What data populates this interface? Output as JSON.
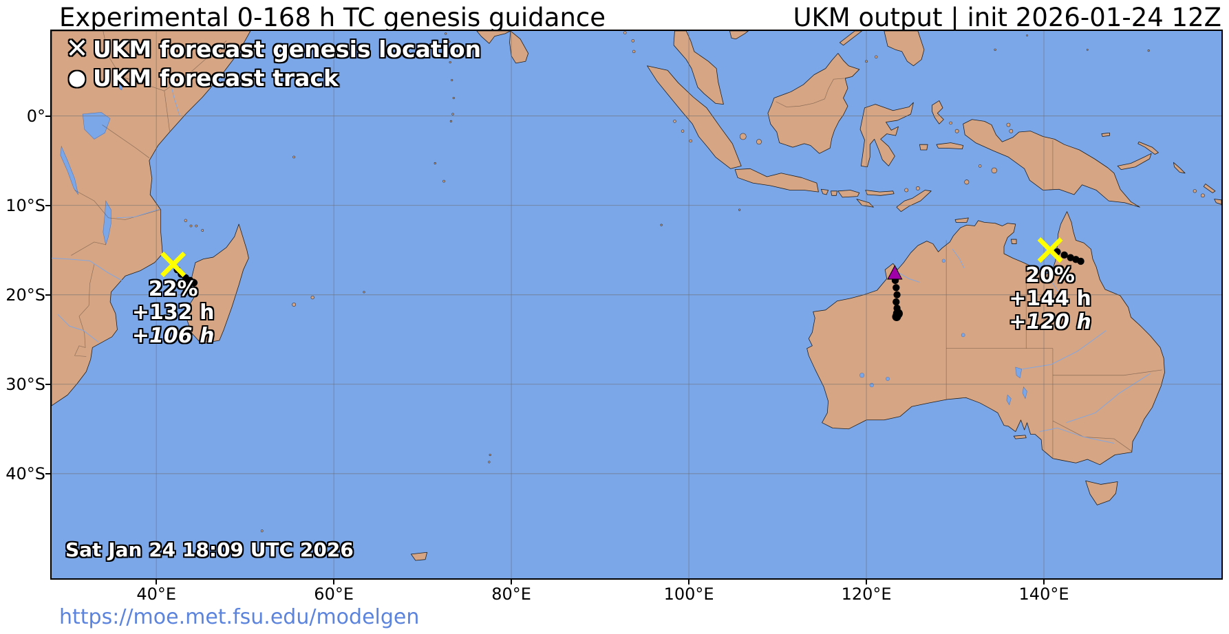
{
  "header": {
    "title_left": "Experimental 0-168 h TC genesis guidance",
    "title_right": "UKM output | init 2026-01-24 12Z"
  },
  "legend": {
    "items": [
      {
        "marker": "✕",
        "label": "UKM forecast genesis location"
      },
      {
        "marker": "●",
        "label": "UKM forecast track"
      }
    ]
  },
  "map": {
    "timestamp": "Sat Jan 24 18:09 UTC 2026",
    "extent": {
      "lon_min": 28.2,
      "lon_max": 160.0,
      "lat_min": -51.7,
      "lat_max": 9.5
    },
    "x_ticks": [
      {
        "lon": 40,
        "label": "40°E"
      },
      {
        "lon": 60,
        "label": "60°E"
      },
      {
        "lon": 80,
        "label": "80°E"
      },
      {
        "lon": 100,
        "label": "100°E"
      },
      {
        "lon": 120,
        "label": "120°E"
      },
      {
        "lon": 140,
        "label": "140°E"
      }
    ],
    "y_ticks": [
      {
        "lat": 0,
        "label": "0°"
      },
      {
        "lat": -10,
        "label": "10°S"
      },
      {
        "lat": -20,
        "label": "20°S"
      },
      {
        "lat": -30,
        "label": "30°S"
      },
      {
        "lat": -40,
        "label": "40°S"
      }
    ],
    "colors": {
      "ocean": "#7ba6e8",
      "land": "#d5a584",
      "coastline": "#1c1c1c",
      "grid": "#707070",
      "genesis_marker": "#ffff00",
      "track_dot": "#000000",
      "current_storm": "#a000a8",
      "url_link": "#5c84dd"
    }
  },
  "systems": [
    {
      "region": "mozambique-channel",
      "marker": "x",
      "lon": 41.9,
      "lat": -16.6,
      "genesis_prob": "22%",
      "genesis_time": "+132 h",
      "track_time": "+106 h",
      "track": [
        [
          42.35,
          -17.2
        ],
        [
          42.8,
          -17.7
        ],
        [
          43.3,
          -18.1
        ],
        [
          43.8,
          -18.4
        ],
        [
          44.25,
          -18.65
        ]
      ]
    },
    {
      "region": "northwest-australia",
      "marker": "triangle",
      "lon": 123.2,
      "lat": -17.7,
      "track": [
        [
          123.25,
          -18.4
        ],
        [
          123.35,
          -19.2
        ],
        [
          123.45,
          -20.0
        ],
        [
          123.35,
          -20.8
        ],
        [
          123.45,
          -21.5
        ],
        [
          123.55,
          -22.1,
          0.55
        ],
        [
          123.4,
          -22.45,
          0.5
        ]
      ]
    },
    {
      "region": "cape-york",
      "marker": "x",
      "lon": 140.7,
      "lat": -15.0,
      "genesis_prob": "20%",
      "genesis_time": "+144 h",
      "track_time": "+120 h",
      "track": [
        [
          141.5,
          -15.2
        ],
        [
          142.3,
          -15.55
        ],
        [
          143.0,
          -15.85
        ],
        [
          143.6,
          -16.05
        ],
        [
          144.15,
          -16.25
        ]
      ]
    }
  ],
  "footer": {
    "url": "https://moe.met.fsu.edu/modelgen"
  }
}
